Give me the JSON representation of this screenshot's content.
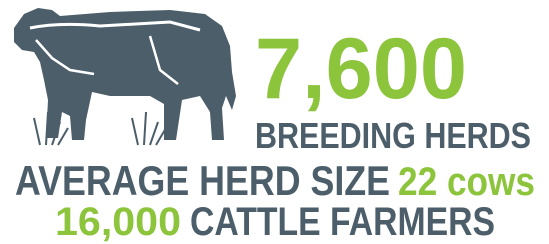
{
  "headline": {
    "value": "7,600",
    "label": "BREEDING HERDS"
  },
  "herd_size": {
    "label": "AVERAGE HERD SIZE",
    "value": "22 cows"
  },
  "farmers": {
    "value": "16,000",
    "label": "CATTLE FARMERS"
  }
}
